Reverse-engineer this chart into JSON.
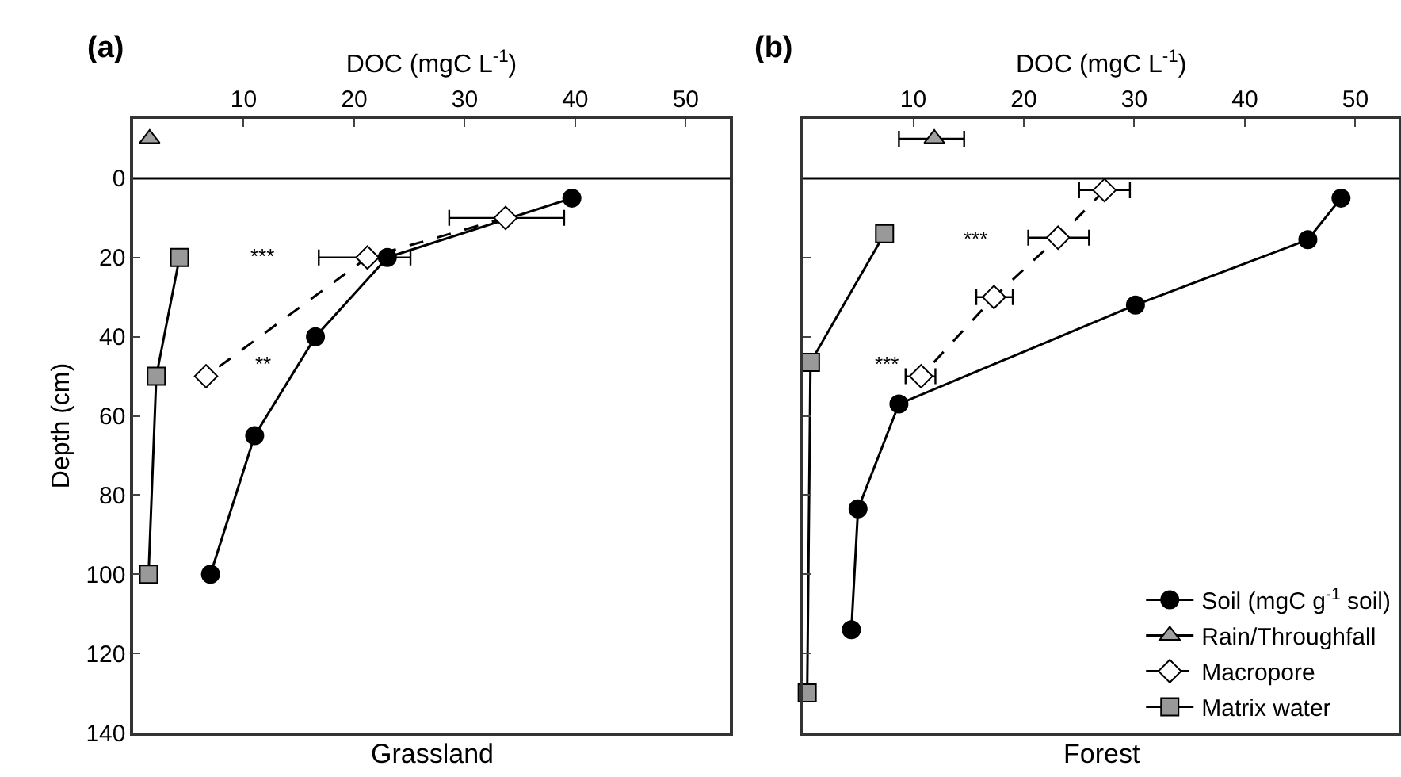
{
  "chart_data": [
    {
      "type": "line",
      "title": "(a)",
      "xlabel": "DOC (mgC L$^{-1}$)",
      "ylabel": "Depth (cm)",
      "xlim": [
        0,
        54
      ],
      "xticks": [
        10,
        20,
        30,
        40,
        50
      ],
      "ylim": [
        140,
        -15
      ],
      "yticks": [
        0,
        20,
        40,
        60,
        80,
        100,
        120,
        140
      ],
      "legend": false,
      "ref_lines": [
        {
          "axis": "y",
          "value": 0,
          "color": "#000000"
        }
      ],
      "annotations": [
        "***",
        "**",
        "Grassland"
      ],
      "series": [
        {
          "color": "#000000",
          "marker": "circle",
          "line_style": "solid",
          "x": [
            39.7,
            23,
            16.5,
            11,
            7
          ],
          "values": [
            5,
            20,
            40,
            65,
            100
          ]
        },
        {
          "color": "#a0a0a0",
          "marker": "triangle",
          "line_style": "solid",
          "x": [
            1.5
          ],
          "values": [
            -10
          ]
        },
        {
          "color": "#ffffff",
          "marker": "diamond",
          "line_style": "dashed",
          "x": [
            33.7,
            21.2,
            6.6
          ],
          "values": [
            10,
            20,
            50
          ],
          "xerrors": [
            [
              28.6,
              39
            ],
            [
              16.8,
              25.1
            ],
            null
          ]
        },
        {
          "color": "#999999",
          "marker": "square",
          "line_style": "solid",
          "x": [
            4.2,
            2.1,
            1.4
          ],
          "values": [
            20,
            50,
            100
          ]
        }
      ]
    },
    {
      "type": "line",
      "title": "(b)",
      "xlabel": "DOC (mgC L$^{-1}$)",
      "xlim": [
        0,
        54
      ],
      "xticks": [
        10,
        20,
        30,
        40,
        50
      ],
      "ylim": [
        140,
        -15
      ],
      "yticks": [
        0,
        20,
        40,
        60,
        80,
        100,
        120,
        140
      ],
      "tick_labels": "x",
      "legend": "bottom right",
      "ref_lines": [
        {
          "axis": "y",
          "value": 0,
          "color": "#000000"
        }
      ],
      "annotations": [
        "***",
        "***",
        "Forest"
      ],
      "series": [
        {
          "name": "Soil (mgC g$^{-1}$ soil)",
          "color": "#000000",
          "marker": "circle",
          "line_style": "solid",
          "x": [
            48.7,
            45.7,
            30.1,
            8.7,
            5,
            4.4
          ],
          "values": [
            5,
            15.5,
            32,
            57,
            83.5,
            114
          ]
        },
        {
          "name": "Rain/Throughfall",
          "color": "#a0a0a0",
          "marker": "triangle",
          "line_style": "solid",
          "x": [
            11.9
          ],
          "values": [
            -10
          ],
          "xerrors": [
            [
              8.7,
              14.6
            ]
          ]
        },
        {
          "name": "Macropore",
          "color": "#ffffff",
          "marker": "diamond",
          "line_style": "dashed",
          "x": [
            27.3,
            23.1,
            17.3,
            10.7
          ],
          "values": [
            3,
            15,
            30,
            50
          ],
          "xerrors": [
            [
              25,
              29.6
            ],
            [
              20.4,
              25.9
            ],
            [
              15.7,
              19
            ],
            [
              9.3,
              12
            ]
          ]
        },
        {
          "name": "Matrix water",
          "color": "#999999",
          "marker": "square",
          "line_style": "solid",
          "x": [
            7.4,
            0.7,
            0.4
          ],
          "values": [
            14,
            46.5,
            130
          ]
        }
      ]
    }
  ]
}
